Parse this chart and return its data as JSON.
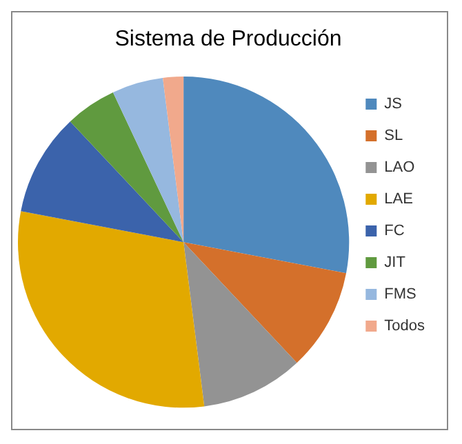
{
  "chart_data": {
    "type": "pie",
    "title": "Sistema de Producción",
    "categories": [
      "JS",
      "SL",
      "LAO",
      "LAE",
      "FC",
      "JIT",
      "FMS",
      "Todos"
    ],
    "values": [
      28,
      10,
      10,
      30,
      10,
      5,
      5,
      2
    ],
    "colors": [
      "#4f89bd",
      "#d4702b",
      "#939393",
      "#e2a900",
      "#3b63ab",
      "#609a3f",
      "#96b8df",
      "#f1a98c"
    ],
    "legend": "right"
  }
}
